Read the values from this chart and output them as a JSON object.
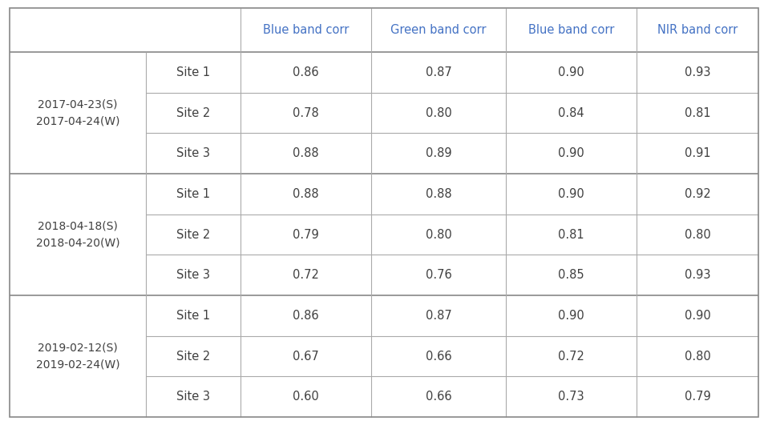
{
  "col_headers": [
    "Blue band corr",
    "Green band corr",
    "Blue band corr",
    "NIR band corr"
  ],
  "row_groups": [
    {
      "label": "2017-04-23(S)\n2017-04-24(W)",
      "sites": [
        "Site 1",
        "Site 2",
        "Site 3"
      ],
      "values": [
        [
          0.86,
          0.87,
          0.9,
          0.93
        ],
        [
          0.78,
          0.8,
          0.84,
          0.81
        ],
        [
          0.88,
          0.89,
          0.9,
          0.91
        ]
      ]
    },
    {
      "label": "2018-04-18(S)\n2018-04-20(W)",
      "sites": [
        "Site 1",
        "Site 2",
        "Site 3"
      ],
      "values": [
        [
          0.88,
          0.88,
          0.9,
          0.92
        ],
        [
          0.79,
          0.8,
          0.81,
          0.8
        ],
        [
          0.72,
          0.76,
          0.85,
          0.93
        ]
      ]
    },
    {
      "label": "2019-02-12(S)\n2019-02-24(W)",
      "sites": [
        "Site 1",
        "Site 2",
        "Site 3"
      ],
      "values": [
        [
          0.86,
          0.87,
          0.9,
          0.9
        ],
        [
          0.67,
          0.66,
          0.72,
          0.8
        ],
        [
          0.6,
          0.66,
          0.73,
          0.79
        ]
      ]
    }
  ],
  "header_text_color": "#4472C4",
  "body_text_color": "#404040",
  "border_color": "#AAAAAA",
  "thick_border_color": "#888888",
  "background_color": "#FFFFFF",
  "header_fontsize": 10.5,
  "body_fontsize": 10.5,
  "group_label_fontsize": 10.0,
  "site_fontsize": 10.5,
  "fig_width": 9.58,
  "fig_height": 5.31,
  "dpi": 100
}
